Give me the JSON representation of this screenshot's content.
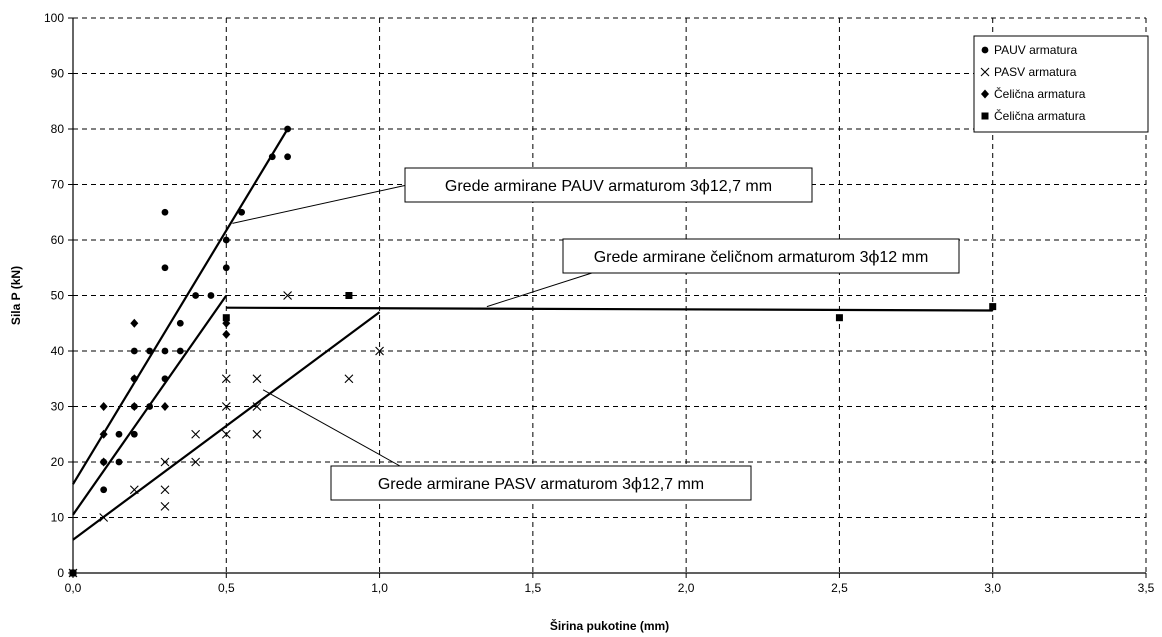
{
  "chart_data": {
    "type": "scatter",
    "title": "",
    "xlabel": "Širina pukotine (mm)",
    "ylabel": "Sila P (kN)",
    "xlim": [
      0,
      3.5
    ],
    "ylim": [
      0,
      100
    ],
    "x_ticks": [
      "0,0",
      "0,5",
      "1,0",
      "1,5",
      "2,0",
      "2,5",
      "3,0",
      "3,5"
    ],
    "x_tick_values": [
      0,
      0.5,
      1.0,
      1.5,
      2.0,
      2.5,
      3.0,
      3.5
    ],
    "y_ticks": [
      "0",
      "10",
      "20",
      "30",
      "40",
      "50",
      "60",
      "70",
      "80",
      "90",
      "100"
    ],
    "y_tick_values": [
      0,
      10,
      20,
      30,
      40,
      50,
      60,
      70,
      80,
      90,
      100
    ],
    "grid": "dashed",
    "legend_position": "top-right",
    "series": [
      {
        "name": "PAUV armatura",
        "marker": "circle",
        "points": [
          [
            0,
            0
          ],
          [
            0.1,
            15
          ],
          [
            0.1,
            20
          ],
          [
            0.15,
            20
          ],
          [
            0.15,
            25
          ],
          [
            0.2,
            25
          ],
          [
            0.2,
            30
          ],
          [
            0.2,
            35
          ],
          [
            0.2,
            40
          ],
          [
            0.25,
            30
          ],
          [
            0.25,
            40
          ],
          [
            0.3,
            35
          ],
          [
            0.3,
            40
          ],
          [
            0.3,
            55
          ],
          [
            0.3,
            65
          ],
          [
            0.35,
            40
          ],
          [
            0.35,
            45
          ],
          [
            0.4,
            50
          ],
          [
            0.45,
            50
          ],
          [
            0.5,
            55
          ],
          [
            0.5,
            60
          ],
          [
            0.55,
            65
          ],
          [
            0.65,
            75
          ],
          [
            0.7,
            75
          ],
          [
            0.7,
            80
          ]
        ]
      },
      {
        "name": "PASV armatura",
        "marker": "x",
        "points": [
          [
            0,
            0
          ],
          [
            0.1,
            10
          ],
          [
            0.2,
            15
          ],
          [
            0.3,
            12
          ],
          [
            0.3,
            15
          ],
          [
            0.3,
            20
          ],
          [
            0.4,
            20
          ],
          [
            0.4,
            25
          ],
          [
            0.5,
            25
          ],
          [
            0.5,
            30
          ],
          [
            0.5,
            35
          ],
          [
            0.6,
            25
          ],
          [
            0.6,
            30
          ],
          [
            0.6,
            35
          ],
          [
            0.7,
            50
          ],
          [
            0.9,
            35
          ],
          [
            1.0,
            40
          ]
        ]
      },
      {
        "name": "Čelična armatura",
        "marker": "diamond",
        "points": [
          [
            0,
            0
          ],
          [
            0.1,
            20
          ],
          [
            0.1,
            25
          ],
          [
            0.1,
            30
          ],
          [
            0.2,
            30
          ],
          [
            0.2,
            35
          ],
          [
            0.2,
            45
          ],
          [
            0.3,
            30
          ],
          [
            0.5,
            43
          ],
          [
            0.5,
            45
          ]
        ]
      },
      {
        "name": "Čelična armatura",
        "marker": "square",
        "points": [
          [
            0,
            0
          ],
          [
            0.5,
            46
          ],
          [
            0.9,
            50
          ],
          [
            2.5,
            46
          ],
          [
            3.0,
            48
          ]
        ]
      }
    ],
    "fit_lines": [
      {
        "points": [
          [
            0,
            16
          ],
          [
            0.7,
            80
          ]
        ]
      },
      {
        "points": [
          [
            0,
            10.5
          ],
          [
            0.5,
            50
          ]
        ]
      },
      {
        "points": [
          [
            0,
            6
          ],
          [
            1.0,
            47
          ]
        ]
      },
      {
        "points": [
          [
            0.5,
            47.8
          ],
          [
            3.0,
            47.3
          ]
        ]
      }
    ],
    "annotations": [
      {
        "text_before": "Grede armirane PAUV armaturom 3",
        "symbol": "ϕ",
        "text_after": "12,7 mm",
        "target": [
          0.52,
          63
        ]
      },
      {
        "text_before": "Grede armirane čeličnom armaturom 3",
        "symbol": "ϕ",
        "text_after": "12 mm",
        "target": [
          1.35,
          48
        ]
      },
      {
        "text_before": "Grede armirane PASV armaturom 3",
        "symbol": "ϕ",
        "text_after": "12,7 mm",
        "target": [
          0.62,
          33
        ]
      }
    ]
  }
}
